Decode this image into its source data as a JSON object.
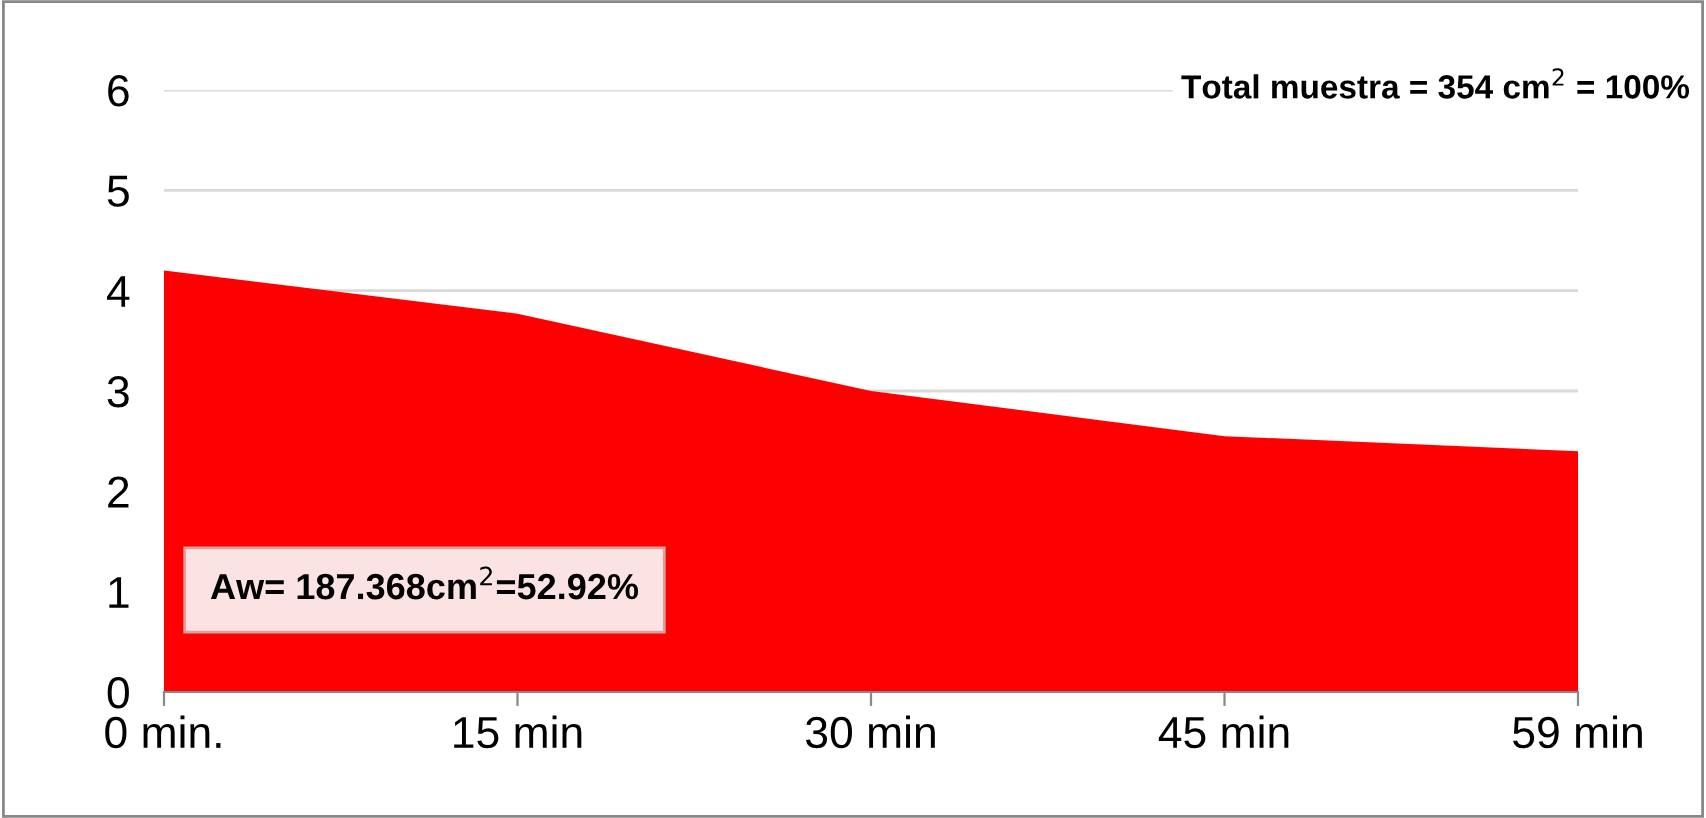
{
  "chart_data": {
    "type": "area",
    "categories": [
      "0 min.",
      "15 min",
      "30 min",
      "45 min",
      "59 min"
    ],
    "series": [
      {
        "color": "#ff0000",
        "values": [
          4.2,
          3.77,
          3.0,
          2.55,
          2.4
        ]
      }
    ],
    "ylim": [
      0,
      6
    ],
    "yticks": [
      0,
      1,
      2,
      3,
      4,
      5,
      6
    ],
    "grid": "y",
    "legend": false,
    "annotations": [
      "Total muestra = 354 cm$^{2}$ = 100%",
      "Aw= 187.368cm$^{2}$=52.92%"
    ]
  }
}
